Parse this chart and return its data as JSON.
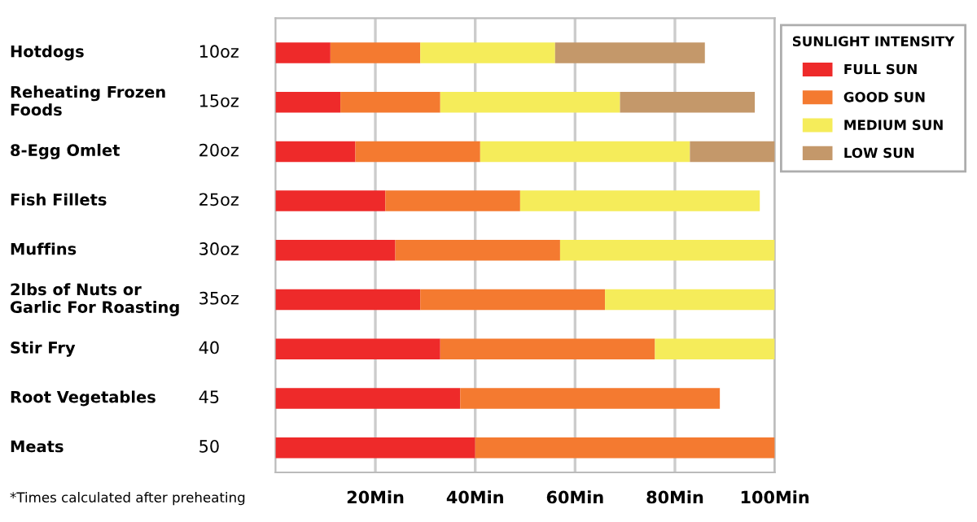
{
  "chart_data": {
    "type": "bar",
    "orientation": "horizontal",
    "stacked": true,
    "categories": [
      "Hotdogs",
      "Reheating Frozen\nFoods",
      "8-Egg Omlet",
      "Fish Fillets",
      "Muffins",
      "2lbs of Nuts or\nGarlic For Roasting",
      "Stir Fry",
      "Root Vegetables",
      "Meats"
    ],
    "y2_categories": [
      "10oz",
      "15oz",
      "20oz",
      "25oz",
      "30oz",
      "35oz",
      "40",
      "45",
      "50"
    ],
    "series": [
      {
        "name": "FULL SUN",
        "color": "#ee2a2a",
        "values": [
          11,
          13,
          16,
          22,
          24,
          29,
          33,
          37,
          40
        ]
      },
      {
        "name": "GOOD SUN",
        "color": "#f47a30",
        "values": [
          18,
          20,
          25,
          27,
          33,
          37,
          43,
          52,
          60
        ]
      },
      {
        "name": "MEDIUM SUN",
        "color": "#f5ec5a",
        "values": [
          27,
          36,
          42,
          48,
          43,
          34,
          24,
          null,
          null
        ]
      },
      {
        "name": "LOW SUN",
        "color": "#c4986a",
        "values": [
          30,
          27,
          17,
          null,
          null,
          null,
          null,
          null,
          null
        ]
      }
    ],
    "legend_title": "SUNLIGHT INTENSITY",
    "legend": "right",
    "xlim": [
      0,
      100
    ],
    "xticks": [
      {
        "value": 20,
        "label": "20Min"
      },
      {
        "value": 40,
        "label": "40Min"
      },
      {
        "value": 60,
        "label": "60Min"
      },
      {
        "value": 80,
        "label": "80Min"
      },
      {
        "value": 100,
        "label": "100Min"
      }
    ],
    "grid": "x",
    "annotations": [
      "*Times calculated after preheating"
    ]
  }
}
